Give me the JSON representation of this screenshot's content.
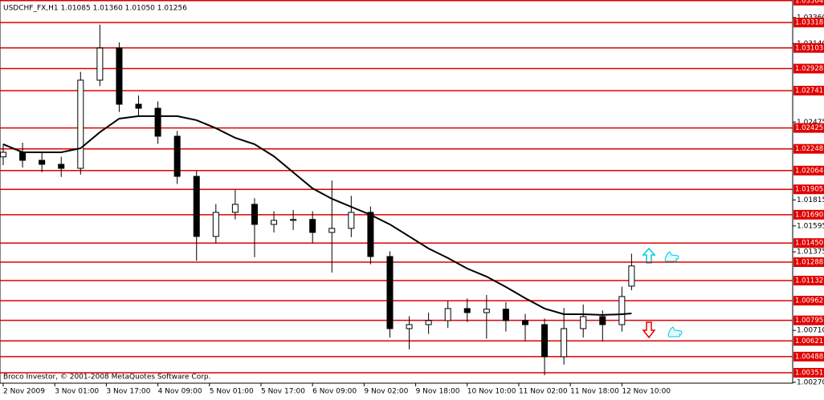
{
  "chart_data": {
    "type": "candlestick",
    "title": "USDCHF_FX,H1  1.01085 1.01360 1.01050 1.01256",
    "footer": "Broco Investor, © 2001-2008 MetaQuotes Software Corp.",
    "xlim": [
      -1,
      245
    ],
    "ylim": [
      1.00263,
      1.03509
    ],
    "xticks": [
      {
        "value": 0,
        "label": "2 Nov 2009"
      },
      {
        "value": 16,
        "label": "3 Nov 01:00"
      },
      {
        "value": 32,
        "label": "3 Nov 17:00"
      },
      {
        "value": 48,
        "label": "4 Nov 09:00"
      },
      {
        "value": 64,
        "label": "5 Nov 01:00"
      },
      {
        "value": 80,
        "label": "5 Nov 17:00"
      },
      {
        "value": 96,
        "label": "6 Nov 09:00"
      },
      {
        "value": 112,
        "label": "9 Nov 02:00"
      },
      {
        "value": 128,
        "label": "9 Nov 18:00"
      },
      {
        "value": 144,
        "label": "10 Nov 10:00"
      },
      {
        "value": 160,
        "label": "11 Nov 02:00"
      },
      {
        "value": 176,
        "label": "11 Nov 18:00"
      },
      {
        "value": 192,
        "label": "12 Nov 10:00"
      }
    ],
    "yticks": [
      {
        "value": 1.0336,
        "label": "1.03360"
      },
      {
        "value": 1.0314,
        "label": "1.03140"
      },
      {
        "value": 1.02475,
        "label": "1.02475"
      },
      {
        "value": 1.01815,
        "label": "1.01815"
      },
      {
        "value": 1.01595,
        "label": "1.01595"
      },
      {
        "value": 1.01375,
        "label": "1.01375"
      },
      {
        "value": 1.0071,
        "label": "1.00710"
      },
      {
        "value": 1.0027,
        "label": "1.00270"
      }
    ],
    "levels_color": "#e00000",
    "levels": [
      {
        "value": 1.03504,
        "label": "1.03504"
      },
      {
        "value": 1.03318,
        "label": "1.03318"
      },
      {
        "value": 1.03103,
        "label": "1.03103"
      },
      {
        "value": 1.02928,
        "label": "1.02928"
      },
      {
        "value": 1.02741,
        "label": "1.02741"
      },
      {
        "value": 1.02425,
        "label": "1.02425"
      },
      {
        "value": 1.02248,
        "label": "1.02248"
      },
      {
        "value": 1.02064,
        "label": "1.02064"
      },
      {
        "value": 1.01905,
        "label": "1.01905"
      },
      {
        "value": 1.0169,
        "label": "1.01690"
      },
      {
        "value": 1.0145,
        "label": "1.01450"
      },
      {
        "value": 1.01288,
        "label": "1.01288"
      },
      {
        "value": 1.01132,
        "label": "1.01132"
      },
      {
        "value": 1.00962,
        "label": "1.00962"
      },
      {
        "value": 1.00795,
        "label": "1.00795"
      },
      {
        "value": 1.00621,
        "label": "1.00621"
      },
      {
        "value": 1.00488,
        "label": "1.00488"
      },
      {
        "value": 1.00351,
        "label": "1.00351"
      }
    ],
    "x": [
      0,
      6,
      12,
      18,
      24,
      30,
      36,
      42,
      48,
      54,
      60,
      66,
      72,
      78,
      84,
      90,
      96,
      102,
      108,
      114,
      120,
      126,
      132,
      138,
      144,
      150,
      156,
      162,
      168,
      174,
      180,
      186,
      192,
      195
    ],
    "open": [
      1.0218,
      1.02219,
      1.02151,
      1.02117,
      1.02083,
      1.0283,
      1.03102,
      1.02626,
      1.02592,
      1.02355,
      1.02015,
      1.01506,
      1.0171,
      1.01778,
      1.01608,
      1.01642,
      1.0165,
      1.0154,
      1.01574,
      1.0171,
      1.01336,
      1.00725,
      1.00759,
      1.00793,
      1.00895,
      1.00861,
      1.0089,
      1.00793,
      1.00759,
      1.00487,
      1.00725,
      1.00827,
      1.00759,
      1.01085
    ],
    "high": [
      1.0229,
      1.023,
      1.0222,
      1.0218,
      1.029,
      1.033,
      1.0315,
      1.027,
      1.0265,
      1.024,
      1.0206,
      1.0178,
      1.019,
      1.0183,
      1.0172,
      1.0173,
      1.0172,
      1.0198,
      1.0185,
      1.0176,
      1.0138,
      1.0083,
      1.0086,
      1.0096,
      1.0098,
      1.0101,
      1.0095,
      1.0085,
      1.0081,
      1.009,
      1.0093,
      1.0088,
      1.0108,
      1.0136
    ],
    "low": [
      1.0211,
      1.0209,
      1.0205,
      1.0201,
      1.0203,
      1.0278,
      1.0256,
      1.0253,
      1.0229,
      1.0195,
      1.013,
      1.0145,
      1.0165,
      1.0133,
      1.0154,
      1.0156,
      1.0145,
      1.012,
      1.015,
      1.0127,
      1.0065,
      1.0055,
      1.0068,
      1.0073,
      1.0078,
      1.0064,
      1.007,
      1.0062,
      1.0033,
      1.0042,
      1.0065,
      1.0062,
      1.007,
      1.0105
    ],
    "close": [
      1.02219,
      1.02151,
      1.02117,
      1.02083,
      1.0283,
      1.03102,
      1.02626,
      1.02592,
      1.02355,
      1.02015,
      1.01506,
      1.0171,
      1.01778,
      1.01608,
      1.01642,
      1.0165,
      1.0154,
      1.01574,
      1.0171,
      1.01336,
      1.00725,
      1.00759,
      1.00793,
      1.00895,
      1.00861,
      1.0089,
      1.00793,
      1.00759,
      1.00487,
      1.00725,
      1.00827,
      1.00759,
      1.00997,
      1.01256
    ],
    "ma": {
      "color": "#000000",
      "values": [
        1.02287,
        1.02219,
        1.02219,
        1.02219,
        1.02253,
        1.02389,
        1.02504,
        1.02525,
        1.02525,
        1.02525,
        1.02491,
        1.02423,
        1.02341,
        1.02287,
        1.02185,
        1.02049,
        1.01913,
        1.01825,
        1.01757,
        1.01689,
        1.01608,
        1.01506,
        1.01404,
        1.01323,
        1.01234,
        1.01166,
        1.01078,
        1.00983,
        1.00895,
        1.00847,
        1.00847,
        1.00841,
        1.00847,
        1.00854
      ]
    }
  }
}
